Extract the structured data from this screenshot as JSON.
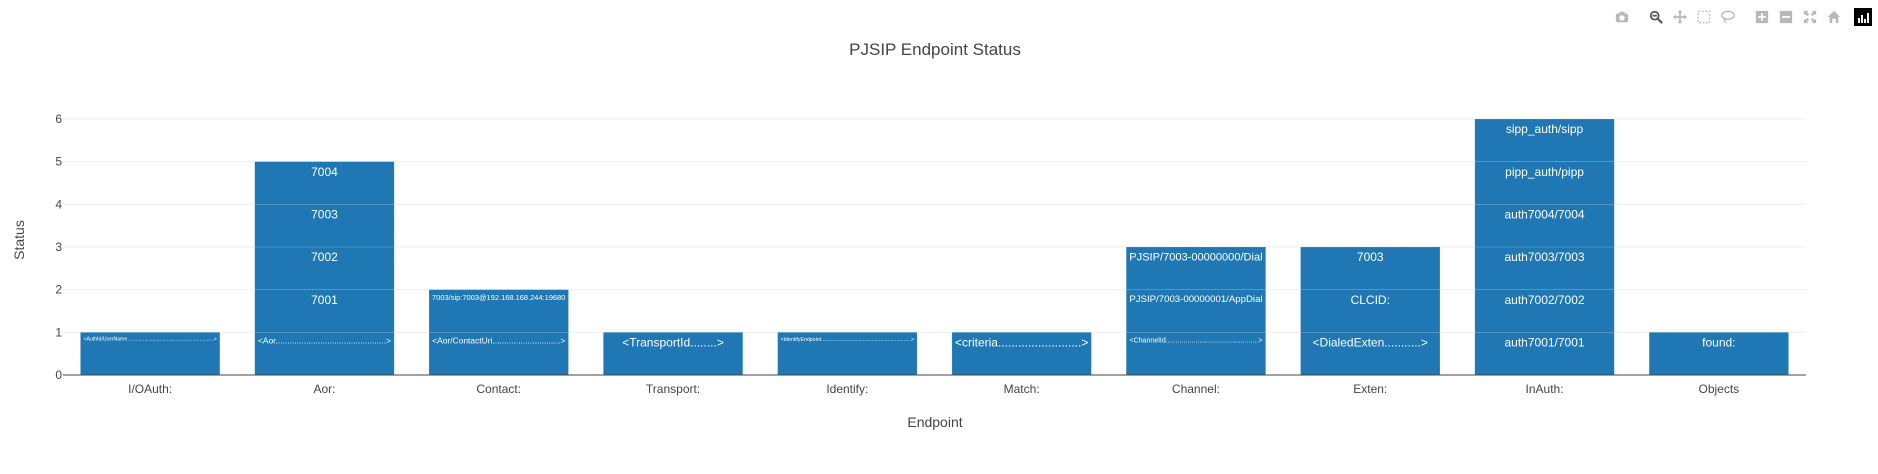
{
  "chart_data": {
    "type": "bar",
    "stacked": true,
    "title": "PJSIP Endpoint Status",
    "xlabel": "Endpoint",
    "ylabel": "Status",
    "ylim": [
      0,
      6
    ],
    "yticks": [
      0,
      1,
      2,
      3,
      4,
      5,
      6
    ],
    "grid": true,
    "bar_color": "#1f77b4",
    "categories": [
      "I/OAuth:",
      "Aor:",
      "Contact:",
      "Transport:",
      "Identify:",
      "Match:",
      "Channel:",
      "Exten:",
      "InAuth:",
      "Objects"
    ],
    "segments": [
      [
        "<AuthId/UserName.............................................................>"
      ],
      [
        "<Aor...............................................>",
        "7001",
        "7002",
        "7003",
        "7004"
      ],
      [
        "<Aor/ContactUri.............................>",
        "7003/sip:7003@192.168.168.244:19680"
      ],
      [
        "<TransportId........>"
      ],
      [
        "<IdentifyEndpoint..............................................................>"
      ],
      [
        "<criteria.........................>"
      ],
      [
        "<ChannelId...............................................>",
        "PJSIP/7003-00000001/AppDial",
        "PJSIP/7003-00000000/Dial"
      ],
      [
        "<DialedExten...........>",
        "CLCID:",
        "7003"
      ],
      [
        "auth7001/7001",
        "auth7002/7002",
        "auth7003/7003",
        "auth7004/7004",
        "pipp_auth/pipp",
        "sipp_auth/sipp"
      ],
      [
        "found:"
      ]
    ],
    "values": [
      1,
      5,
      2,
      1,
      1,
      1,
      3,
      3,
      6,
      1
    ]
  },
  "modebar": {
    "buttons": [
      "camera-icon",
      "zoom-icon",
      "pan-icon",
      "box-select-icon",
      "lasso-select-icon",
      "zoom-in-icon",
      "zoom-out-icon",
      "autoscale-icon",
      "reset-axes-icon"
    ],
    "active": "zoom-icon"
  }
}
